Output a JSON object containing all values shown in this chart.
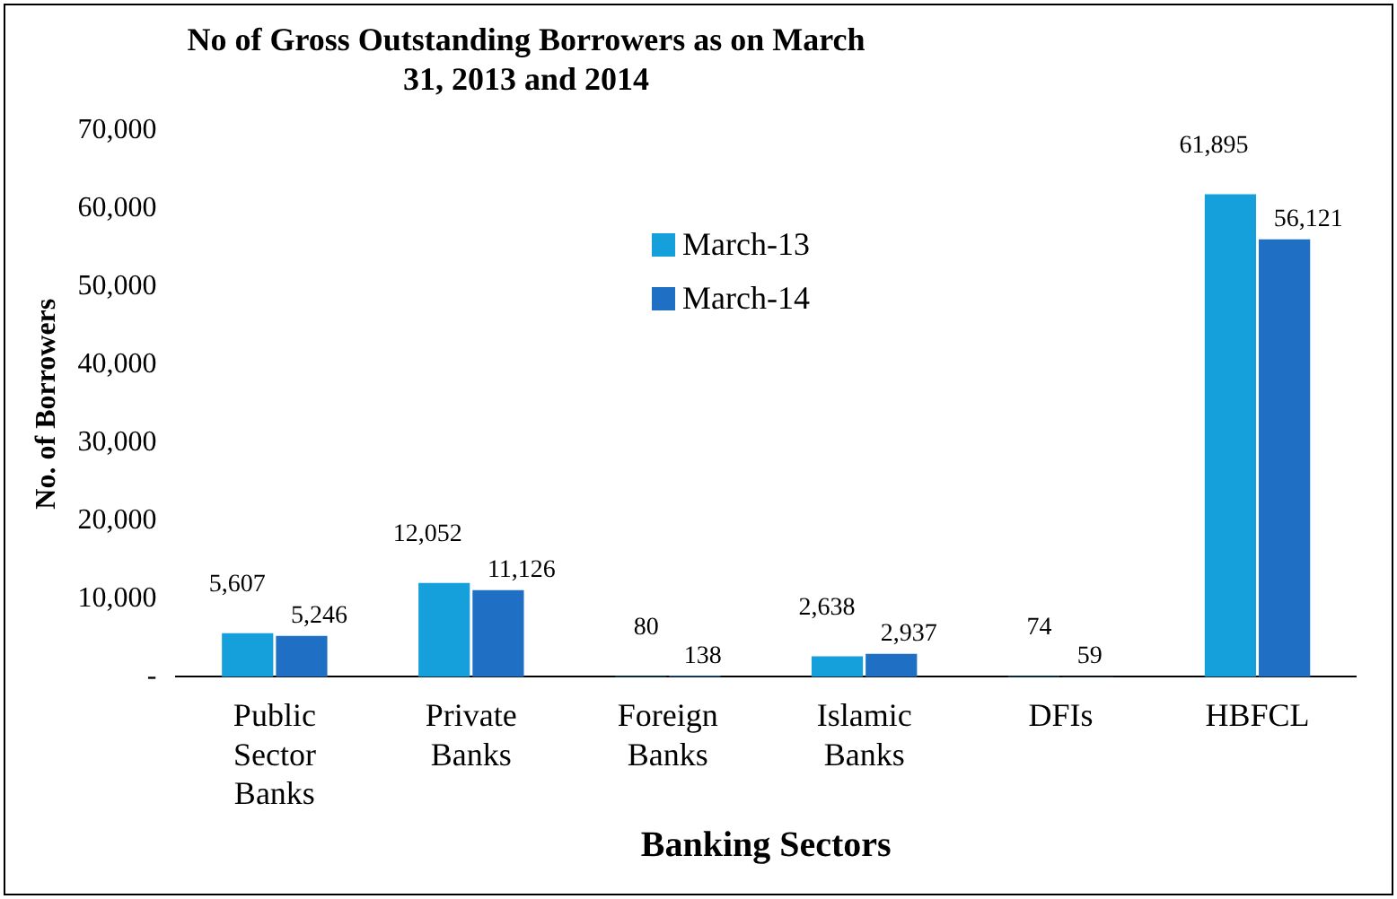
{
  "chart_data": {
    "type": "bar",
    "title": "No of Gross Outstanding Borrowers as on March 31, 2013 and 2014",
    "xlabel": "Banking Sectors",
    "ylabel": "No. of Borrowers",
    "categories": [
      "Public Sector Banks",
      "Private Banks",
      "Foreign Banks",
      "Islamic Banks",
      "DFIs",
      "HBFCL"
    ],
    "series": [
      {
        "name": "March-13",
        "color": "#16a0db",
        "values": [
          5607,
          12052,
          80,
          2638,
          74,
          61895
        ],
        "value_labels": [
          "5,607",
          "12,052",
          "80",
          "2,638",
          "74",
          "61,895"
        ]
      },
      {
        "name": "March-14",
        "color": "#1f6fc4",
        "values": [
          5246,
          11126,
          138,
          2937,
          59,
          56121
        ],
        "value_labels": [
          "5,246",
          "11,126",
          "138",
          "2,937",
          "59",
          "56,121"
        ]
      }
    ],
    "ylim": [
      0,
      70000
    ],
    "yticks": [
      {
        "value": 0,
        "label": "-"
      },
      {
        "value": 10000,
        "label": "10,000"
      },
      {
        "value": 20000,
        "label": "20,000"
      },
      {
        "value": 30000,
        "label": "30,000"
      },
      {
        "value": 40000,
        "label": "40,000"
      },
      {
        "value": 50000,
        "label": "50,000"
      },
      {
        "value": 60000,
        "label": "60,000"
      },
      {
        "value": 70000,
        "label": "70,000"
      }
    ],
    "grid": false,
    "legend": "top right"
  }
}
